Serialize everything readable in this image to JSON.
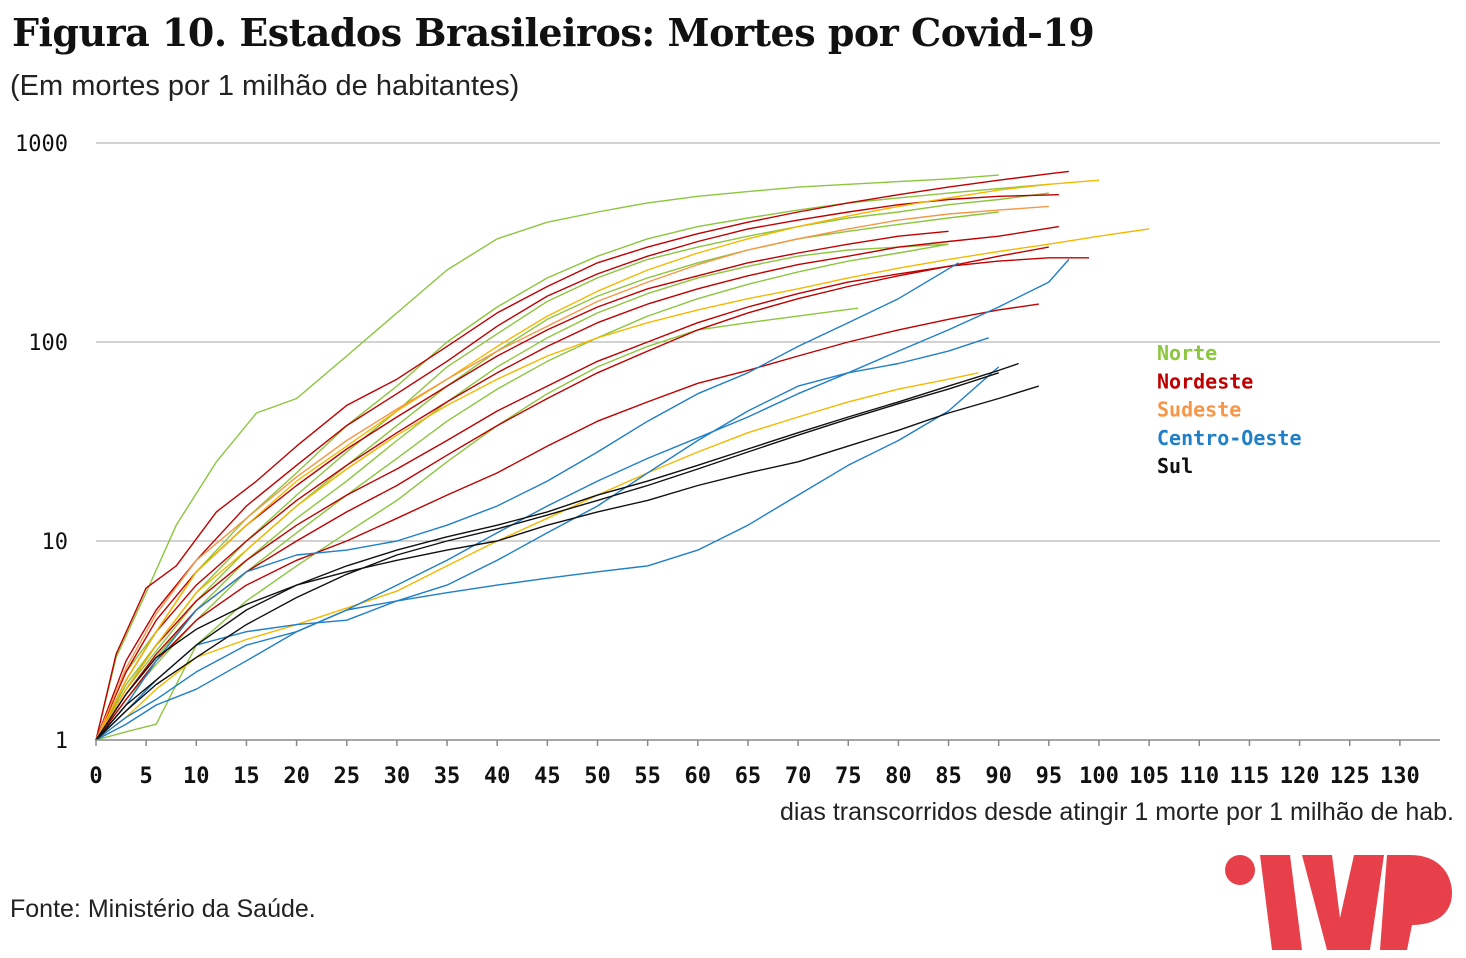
{
  "title": "Figura 10. Estados Brasileiros: Mortes por Covid-19",
  "subtitle": "(Em mortes por 1 milhão de habitantes)",
  "source": "Fonte: Ministério da Saúde.",
  "logo": {
    "name": "imp-logo",
    "color": "#e8404a"
  },
  "chart_data": {
    "type": "line",
    "xlabel": "dias transcorridos desde atingir 1 morte por 1 milhão de  hab.",
    "ylabel": "",
    "xlim": [
      0,
      134
    ],
    "ylim": [
      1,
      1000
    ],
    "yscale": "log",
    "grid": "horizontal",
    "xticks": [
      "0",
      "5",
      "10",
      "15",
      "20",
      "25",
      "30",
      "35",
      "40",
      "45",
      "50",
      "55",
      "60",
      "65",
      "70",
      "75",
      "80",
      "85",
      "90",
      "95",
      "100",
      "105",
      "110",
      "115",
      "120",
      "125",
      "130"
    ],
    "yticks": [
      "1",
      "10",
      "100",
      "1000"
    ],
    "legend": {
      "placement": "right",
      "entries": [
        {
          "label": "Norte",
          "color": "#8cc63e"
        },
        {
          "label": "Nordeste",
          "color": "#c00000"
        },
        {
          "label": "Sudeste",
          "color": "#f79646"
        },
        {
          "label": "Centro-Oeste",
          "color": "#1f7fc8"
        },
        {
          "label": "Sul",
          "color": "#111111"
        }
      ]
    },
    "series": [
      {
        "region": "Norte",
        "color": "#8cc63e",
        "x": [
          0,
          2,
          5,
          8,
          12,
          16,
          20,
          25,
          30,
          35,
          40,
          45,
          50,
          55,
          60,
          65,
          70,
          75,
          80,
          85,
          90
        ],
        "y": [
          1,
          2.6,
          5.5,
          12,
          25,
          44,
          52,
          85,
          140,
          230,
          330,
          400,
          450,
          500,
          540,
          570,
          600,
          620,
          640,
          660,
          690
        ]
      },
      {
        "region": "Norte",
        "color": "#8cc63e",
        "x": [
          0,
          3,
          6,
          10,
          15,
          20,
          25,
          30,
          35,
          40,
          45,
          50,
          55,
          60,
          65,
          70,
          75,
          80,
          85,
          90,
          95
        ],
        "y": [
          1,
          2.2,
          3.5,
          7,
          13,
          22,
          38,
          60,
          100,
          150,
          210,
          270,
          330,
          380,
          420,
          460,
          500,
          530,
          560,
          590,
          620
        ]
      },
      {
        "region": "Norte",
        "color": "#8cc63e",
        "x": [
          0,
          3,
          6,
          10,
          15,
          20,
          25,
          30,
          35,
          40,
          45,
          50,
          55,
          60,
          65,
          70,
          75,
          80,
          85,
          90,
          95
        ],
        "y": [
          1,
          1.9,
          3,
          5.5,
          10,
          17,
          28,
          45,
          75,
          110,
          160,
          210,
          260,
          300,
          340,
          380,
          420,
          450,
          490,
          520,
          560
        ]
      },
      {
        "region": "Norte",
        "color": "#8cc63e",
        "x": [
          0,
          3,
          6,
          10,
          15,
          20,
          25,
          30,
          35,
          40,
          45,
          50,
          55,
          60,
          65,
          70,
          75,
          80,
          85,
          90
        ],
        "y": [
          1,
          1.8,
          2.8,
          5,
          9,
          15,
          24,
          38,
          60,
          90,
          130,
          170,
          210,
          250,
          290,
          330,
          360,
          390,
          420,
          450
        ]
      },
      {
        "region": "Norte",
        "color": "#8cc63e",
        "x": [
          0,
          3,
          6,
          10,
          15,
          20,
          25,
          30,
          35,
          40,
          45,
          50,
          55,
          60,
          65,
          70,
          75,
          80,
          85
        ],
        "y": [
          1,
          1.6,
          2.4,
          4,
          7,
          11,
          17,
          26,
          40,
          58,
          80,
          105,
          135,
          165,
          195,
          225,
          255,
          280,
          310
        ]
      },
      {
        "region": "Norte",
        "color": "#8cc63e",
        "x": [
          0,
          3,
          6,
          10,
          15,
          20,
          25,
          30,
          35,
          40,
          45,
          50,
          55,
          60,
          65,
          70,
          76
        ],
        "y": [
          1,
          1.1,
          1.2,
          3,
          5,
          7.5,
          11,
          16,
          25,
          38,
          55,
          75,
          95,
          115,
          125,
          135,
          148
        ]
      },
      {
        "region": "Norte",
        "color": "#8cc63e",
        "x": [
          0,
          3,
          6,
          10,
          15,
          20,
          25,
          30,
          35,
          40,
          45,
          50,
          55,
          60,
          65,
          70,
          75,
          80,
          85
        ],
        "y": [
          1,
          1.7,
          2.6,
          4.5,
          8,
          13,
          20,
          32,
          50,
          75,
          105,
          140,
          175,
          210,
          240,
          270,
          290,
          300,
          310
        ]
      },
      {
        "region": "Nordeste",
        "color": "#c00000",
        "x": [
          0,
          2,
          5,
          8,
          12,
          16,
          20,
          25,
          30,
          35,
          40,
          45,
          50,
          55,
          60,
          65,
          70,
          75,
          80,
          85,
          90,
          95,
          97
        ],
        "y": [
          1,
          2.7,
          5.8,
          7.5,
          14,
          20,
          30,
          48,
          65,
          95,
          140,
          190,
          250,
          300,
          350,
          400,
          450,
          500,
          550,
          600,
          650,
          700,
          720
        ]
      },
      {
        "region": "Nordeste",
        "color": "#c00000",
        "x": [
          0,
          3,
          6,
          10,
          15,
          20,
          25,
          30,
          35,
          40,
          45,
          50,
          55,
          60,
          65,
          70,
          75,
          80,
          85,
          90,
          96
        ],
        "y": [
          1,
          2.5,
          4.5,
          8,
          15,
          24,
          38,
          55,
          80,
          120,
          170,
          220,
          270,
          320,
          370,
          410,
          450,
          490,
          520,
          540,
          550
        ]
      },
      {
        "region": "Nordeste",
        "color": "#c00000",
        "x": [
          0,
          3,
          6,
          10,
          15,
          20,
          25,
          30,
          35,
          40,
          45,
          50,
          55,
          60,
          65,
          70,
          75,
          80,
          85
        ],
        "y": [
          1,
          2.2,
          4,
          7,
          12,
          19,
          29,
          42,
          60,
          85,
          115,
          150,
          185,
          215,
          250,
          280,
          310,
          340,
          360
        ]
      },
      {
        "region": "Nordeste",
        "color": "#c00000",
        "x": [
          0,
          3,
          6,
          10,
          15,
          20,
          25,
          30,
          35,
          40,
          45,
          50,
          55,
          60,
          65,
          70,
          75,
          80,
          85,
          90,
          96
        ],
        "y": [
          1,
          2,
          3.5,
          6,
          10,
          16,
          24,
          35,
          50,
          70,
          95,
          125,
          155,
          185,
          215,
          245,
          270,
          300,
          320,
          340,
          380
        ]
      },
      {
        "region": "Nordeste",
        "color": "#c00000",
        "x": [
          0,
          3,
          6,
          10,
          15,
          20,
          25,
          30,
          35,
          40,
          45,
          50,
          55,
          60,
          65,
          70,
          75,
          80,
          85,
          90,
          95,
          99
        ],
        "y": [
          1,
          1.8,
          3,
          5,
          8,
          12,
          17,
          23,
          32,
          45,
          60,
          80,
          100,
          125,
          150,
          175,
          200,
          220,
          240,
          255,
          265,
          265
        ]
      },
      {
        "region": "Nordeste",
        "color": "#c00000",
        "x": [
          0,
          3,
          6,
          10,
          15,
          20,
          25,
          30,
          35,
          40,
          45,
          50,
          55,
          60,
          65,
          70,
          75,
          80,
          85,
          90,
          94
        ],
        "y": [
          1,
          1.6,
          2.5,
          4,
          6,
          8,
          10,
          13,
          17,
          22,
          30,
          40,
          50,
          62,
          72,
          85,
          100,
          115,
          130,
          145,
          155
        ]
      },
      {
        "region": "Nordeste",
        "color": "#c00000",
        "x": [
          0,
          3,
          6,
          10,
          15,
          20,
          25,
          30,
          35,
          40,
          45,
          50,
          55,
          60,
          65,
          70,
          75,
          80,
          85,
          90,
          95
        ],
        "y": [
          1,
          1.7,
          2.7,
          4.5,
          7,
          10,
          14,
          19,
          27,
          38,
          52,
          70,
          90,
          115,
          140,
          165,
          190,
          215,
          240,
          270,
          300
        ]
      },
      {
        "region": "Sudeste",
        "color": "#f5b800",
        "x": [
          0,
          3,
          6,
          10,
          15,
          20,
          25,
          30,
          35,
          40,
          45,
          50,
          55,
          60,
          65,
          70,
          75,
          80,
          85,
          90,
          95,
          100
        ],
        "y": [
          1,
          2,
          3.5,
          7,
          12,
          20,
          30,
          45,
          65,
          95,
          135,
          180,
          230,
          280,
          330,
          380,
          430,
          480,
          530,
          580,
          620,
          650
        ]
      },
      {
        "region": "Sudeste",
        "color": "#f5b800",
        "x": [
          0,
          3,
          6,
          10,
          15,
          20,
          25,
          30,
          35,
          40,
          45,
          50,
          55,
          60,
          65,
          70,
          75,
          80,
          85,
          90,
          95,
          100,
          105
        ],
        "y": [
          1,
          1.8,
          3,
          5.5,
          9,
          15,
          23,
          34,
          48,
          65,
          85,
          105,
          125,
          145,
          165,
          185,
          210,
          235,
          260,
          285,
          310,
          340,
          370
        ]
      },
      {
        "region": "Sudeste",
        "color": "#f79646",
        "x": [
          0,
          3,
          6,
          10,
          15,
          20,
          25,
          30,
          35,
          40,
          45,
          50,
          55,
          60,
          65,
          70,
          75,
          80,
          85,
          90,
          95
        ],
        "y": [
          1,
          2.3,
          4.3,
          8,
          13,
          21,
          32,
          46,
          65,
          90,
          120,
          160,
          200,
          245,
          290,
          330,
          370,
          410,
          440,
          460,
          480
        ]
      },
      {
        "region": "Sudeste",
        "color": "#f5b800",
        "x": [
          0,
          3,
          6,
          10,
          15,
          20,
          25,
          30,
          35,
          40,
          45,
          50,
          55,
          60,
          65,
          70,
          75,
          80,
          85,
          88
        ],
        "y": [
          1,
          1.3,
          1.8,
          2.6,
          3.2,
          3.8,
          4.6,
          5.6,
          7.5,
          10,
          13,
          17,
          22,
          28,
          35,
          42,
          50,
          58,
          65,
          70
        ]
      },
      {
        "region": "Centro-Oeste",
        "color": "#1f7fc8",
        "x": [
          0,
          3,
          6,
          10,
          15,
          20,
          25,
          30,
          35,
          40,
          45,
          50,
          55,
          60,
          65,
          70,
          75,
          80,
          86
        ],
        "y": [
          1,
          1.5,
          2.5,
          4.5,
          7,
          8.5,
          9,
          10,
          12,
          15,
          20,
          28,
          40,
          55,
          70,
          95,
          125,
          165,
          250
        ]
      },
      {
        "region": "Centro-Oeste",
        "color": "#1f7fc8",
        "x": [
          0,
          3,
          6,
          10,
          15,
          20,
          25,
          30,
          35,
          40,
          45,
          50,
          55,
          60,
          65,
          70,
          75,
          80,
          85,
          89
        ],
        "y": [
          1,
          1.4,
          2,
          3,
          3.5,
          3.8,
          4,
          5,
          6,
          8,
          11,
          15,
          22,
          32,
          45,
          60,
          70,
          78,
          90,
          105
        ]
      },
      {
        "region": "Centro-Oeste",
        "color": "#1f7fc8",
        "x": [
          0,
          3,
          6,
          10,
          15,
          20,
          25,
          30,
          35,
          40,
          45,
          50,
          55,
          60,
          65,
          70,
          75,
          80,
          85,
          90,
          95,
          97
        ],
        "y": [
          1,
          1.3,
          1.6,
          2.2,
          3,
          3.5,
          4.5,
          6,
          8,
          11,
          15,
          20,
          26,
          33,
          42,
          55,
          70,
          90,
          115,
          150,
          200,
          260
        ]
      },
      {
        "region": "Centro-Oeste",
        "color": "#1f7fc8",
        "x": [
          0,
          3,
          6,
          10,
          15,
          20,
          25,
          30,
          35,
          40,
          45,
          50,
          55,
          60,
          65,
          70,
          75,
          80,
          85,
          90
        ],
        "y": [
          1,
          1.2,
          1.5,
          1.8,
          2.5,
          3.5,
          4.5,
          5,
          5.5,
          6,
          6.5,
          7,
          7.5,
          9,
          12,
          17,
          24,
          32,
          45,
          75
        ]
      },
      {
        "region": "Sul",
        "color": "#111111",
        "x": [
          0,
          3,
          6,
          10,
          15,
          20,
          25,
          30,
          35,
          40,
          45,
          50,
          55,
          60,
          65,
          70,
          75,
          80,
          85,
          90,
          94
        ],
        "y": [
          1,
          1.7,
          2.6,
          3.6,
          4.8,
          6,
          7,
          8,
          9,
          10,
          12,
          14,
          16,
          19,
          22,
          25,
          30,
          36,
          44,
          52,
          60
        ]
      },
      {
        "region": "Sul",
        "color": "#111111",
        "x": [
          0,
          3,
          6,
          10,
          15,
          20,
          25,
          30,
          35,
          40,
          45,
          50,
          55,
          60,
          65,
          70,
          75,
          80,
          85,
          90,
          92
        ],
        "y": [
          1,
          1.5,
          2,
          3,
          4.5,
          6,
          7.5,
          9,
          10.5,
          12,
          14,
          17,
          20,
          24,
          29,
          35,
          42,
          50,
          60,
          72,
          78
        ]
      },
      {
        "region": "Sul",
        "color": "#111111",
        "x": [
          0,
          3,
          6,
          10,
          15,
          20,
          25,
          30,
          35,
          40,
          45,
          50,
          55,
          60,
          65,
          70,
          75,
          80,
          85,
          90
        ],
        "y": [
          1,
          1.4,
          1.9,
          2.6,
          3.8,
          5.2,
          6.8,
          8.5,
          10,
          11.5,
          13.5,
          16,
          19,
          23,
          28,
          34,
          41,
          49,
          58,
          70
        ]
      }
    ]
  }
}
